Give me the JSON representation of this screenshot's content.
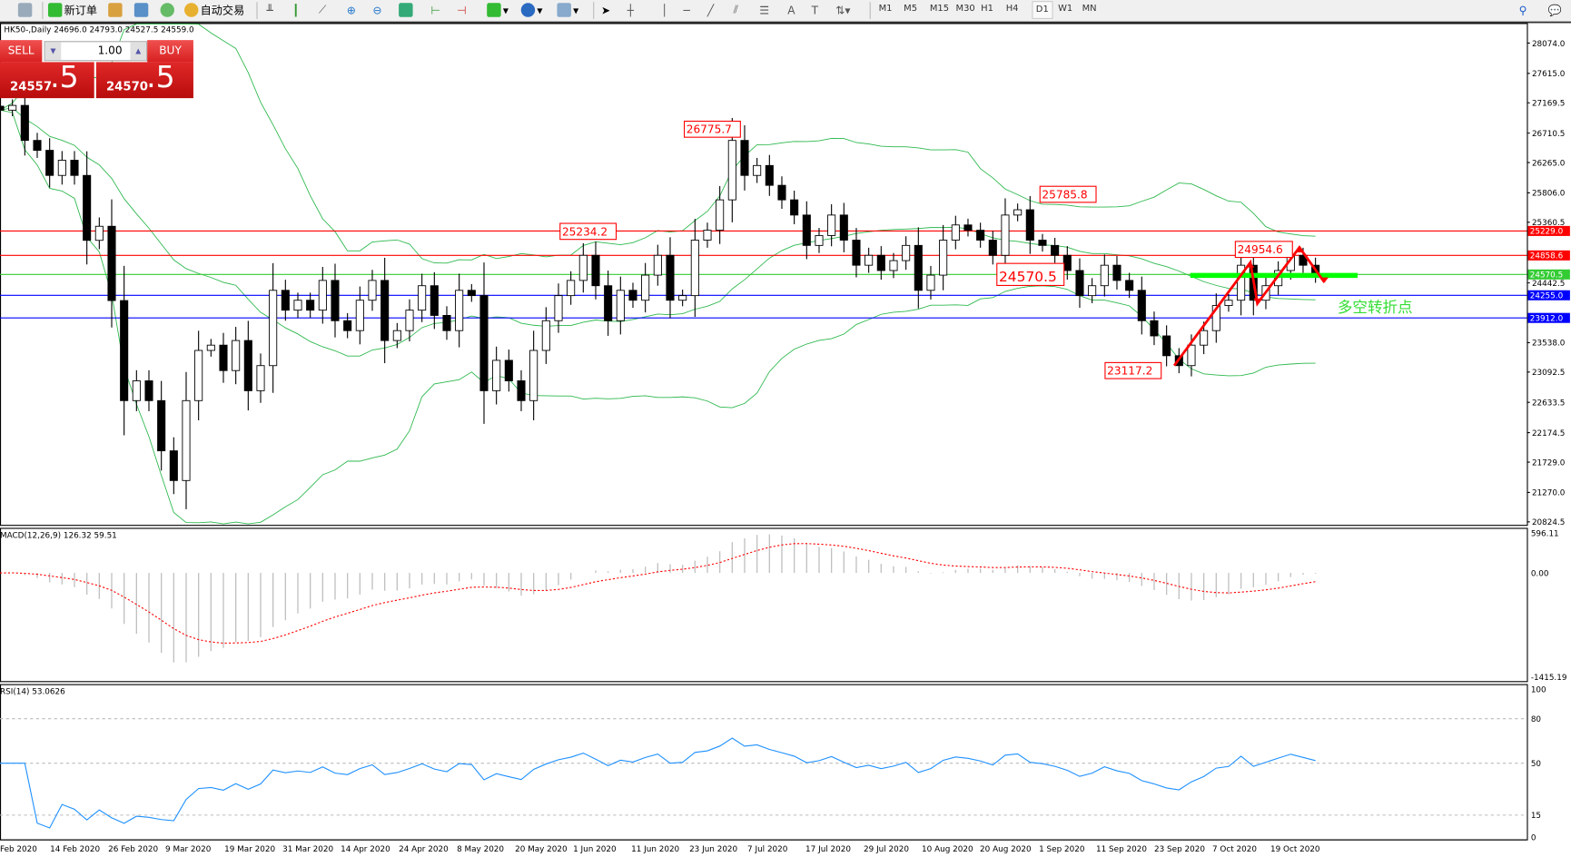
{
  "toolbar": {
    "new_order": "新订单",
    "auto_trading": "自动交易",
    "timeframes": [
      "M1",
      "M5",
      "M15",
      "M30",
      "H1",
      "H4",
      "D1",
      "W1",
      "MN"
    ],
    "active_timeframe": "D1"
  },
  "header": {
    "symbol_info": "HK50-,Daily  24696.0 24793.0 24527.5 24559.0"
  },
  "trade_panel": {
    "sell_label": "SELL",
    "buy_label": "BUY",
    "lot": "1.00",
    "sell_price_main": "24557",
    "sell_price_big": ".5",
    "buy_price_main": "24570",
    "buy_price_big": ".5"
  },
  "price_axis": [
    "28074.0",
    "27615.0",
    "27169.5",
    "26710.5",
    "26265.0",
    "25806.0",
    "25360.5",
    "24442.5",
    "23538.0",
    "23092.5",
    "22633.5",
    "22174.5",
    "21729.0",
    "21270.0",
    "20824.5"
  ],
  "levels": [
    {
      "value": "25229.0",
      "color": "#ff0000"
    },
    {
      "value": "24858.6",
      "color": "#ff0000"
    },
    {
      "value": "24570.5",
      "color": "#33cc33"
    },
    {
      "value": "24255.0",
      "color": "#0000ff"
    },
    {
      "value": "23912.0",
      "color": "#0000ff"
    }
  ],
  "annotations": [
    "26775.7",
    "25234.2",
    "25785.8",
    "24954.6",
    "24570.5",
    "23117.2"
  ],
  "note_text": "多空转折点",
  "macd": {
    "label": "MACD(12,26,9) 126.32 59.51",
    "axis": [
      "596.11",
      "0.00",
      "-1415.19"
    ]
  },
  "rsi": {
    "label": "RSI(14) 53.0626",
    "axis": [
      "100",
      "80",
      "50",
      "15",
      "0"
    ]
  },
  "dates": [
    "Feb 2020",
    "14 Feb 2020",
    "26 Feb 2020",
    "9 Mar 2020",
    "19 Mar 2020",
    "31 Mar 2020",
    "14 Apr 2020",
    "24 Apr 2020",
    "8 May 2020",
    "20 May 2020",
    "1 Jun 2020",
    "11 Jun 2020",
    "23 Jun 2020",
    "7 Jul 2020",
    "17 Jul 2020",
    "29 Jul 2020",
    "10 Aug 2020",
    "20 Aug 2020",
    "1 Sep 2020",
    "11 Sep 2020",
    "23 Sep 2020",
    "7 Oct 2020",
    "19 Oct 2020"
  ],
  "chart_data": {
    "type": "candlestick",
    "ylim": [
      20824.5,
      28074.0
    ],
    "closes": [
      27058,
      27130,
      26600,
      26450,
      26070,
      26300,
      26070,
      25087,
      25300,
      24175,
      22660,
      22960,
      22660,
      21900,
      21450,
      22660,
      23420,
      23500,
      23115,
      23570,
      22810,
      23190,
      24330,
      24030,
      24180,
      24030,
      24480,
      23870,
      23720,
      24180,
      24480,
      23570,
      23720,
      24030,
      24400,
      23950,
      23720,
      24330,
      24250,
      22810,
      23270,
      22960,
      22660,
      23420,
      23870,
      24250,
      24480,
      24860,
      24400,
      23870,
      24330,
      24180,
      24560,
      24860,
      24180,
      24250,
      25090,
      25240,
      25700,
      26600,
      26070,
      26220,
      25920,
      25700,
      25470,
      25010,
      25160,
      25470,
      25090,
      24710,
      24860,
      24630,
      24780,
      25010,
      24330,
      24560,
      25090,
      25320,
      25240,
      25090,
      24860,
      25470,
      25550,
      25090,
      25010,
      24860,
      24630,
      24250,
      24400,
      24710,
      24480,
      24330,
      23870,
      23640,
      23340,
      23190,
      23500,
      23720,
      24100,
      24180,
      24710,
      24180,
      24400,
      24630,
      24860,
      24710,
      24559
    ]
  }
}
